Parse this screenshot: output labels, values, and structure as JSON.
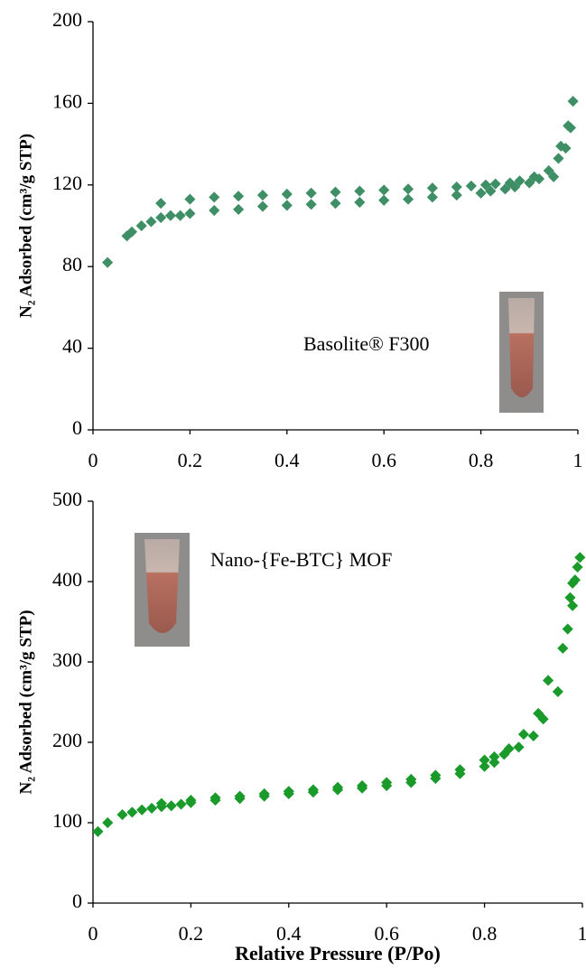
{
  "chart_data": [
    {
      "type": "scatter",
      "ylabel": "N₂ Adsorbed (cm³/g STP)",
      "annotation": "Basolite® F300",
      "color": "#3f8f66",
      "x": [
        0.03,
        0.07,
        0.08,
        0.1,
        0.12,
        0.14,
        0.14,
        0.16,
        0.18,
        0.2,
        0.2,
        0.25,
        0.25,
        0.3,
        0.3,
        0.35,
        0.35,
        0.4,
        0.4,
        0.45,
        0.45,
        0.5,
        0.5,
        0.55,
        0.55,
        0.6,
        0.6,
        0.65,
        0.65,
        0.7,
        0.7,
        0.75,
        0.75,
        0.78,
        0.8,
        0.81,
        0.82,
        0.83,
        0.85,
        0.86,
        0.87,
        0.88,
        0.9,
        0.91,
        0.92,
        0.94,
        0.95,
        0.96,
        0.965,
        0.975,
        0.98,
        0.985,
        0.99
      ],
      "values": [
        82,
        95,
        97,
        100,
        102,
        111,
        104,
        105,
        105,
        106,
        113,
        114,
        107.5,
        114.5,
        108,
        115,
        109.5,
        115.5,
        110,
        116,
        110.5,
        116.5,
        111,
        117,
        111.5,
        117.5,
        112.5,
        118,
        113,
        118.5,
        114,
        119,
        115,
        119.5,
        116,
        120,
        117,
        120.5,
        118,
        121,
        119,
        122,
        121,
        124,
        123,
        127,
        124,
        133,
        139,
        138,
        149,
        148,
        161
      ],
      "xlim": [
        0,
        1
      ],
      "ylim": [
        0,
        200
      ],
      "xticks": [
        0,
        0.2,
        0.4,
        0.6,
        0.8,
        1
      ],
      "yticks": [
        0,
        40,
        80,
        120,
        160,
        200
      ]
    },
    {
      "type": "scatter",
      "ylabel": "N₂ Adsorbed (cm³/g STP)",
      "annotation": "Nano-{Fe-BTC} MOF",
      "xlabel": "Relative Pressure (P/Po)",
      "color": "#1a9a2a",
      "x": [
        0.01,
        0.03,
        0.06,
        0.08,
        0.1,
        0.12,
        0.14,
        0.14,
        0.16,
        0.18,
        0.2,
        0.2,
        0.25,
        0.25,
        0.3,
        0.3,
        0.35,
        0.35,
        0.4,
        0.4,
        0.45,
        0.45,
        0.5,
        0.5,
        0.55,
        0.55,
        0.6,
        0.6,
        0.65,
        0.65,
        0.7,
        0.7,
        0.75,
        0.75,
        0.8,
        0.8,
        0.82,
        0.82,
        0.84,
        0.85,
        0.87,
        0.88,
        0.9,
        0.91,
        0.92,
        0.93,
        0.95,
        0.96,
        0.97,
        0.975,
        0.98,
        0.98,
        0.985,
        0.99,
        0.995
      ],
      "values": [
        89,
        100,
        110,
        113,
        116,
        118,
        120,
        124,
        121,
        123,
        125,
        128,
        128,
        131,
        130,
        133,
        133,
        136,
        136,
        139,
        138,
        141,
        141,
        144,
        143,
        146,
        146,
        150,
        150,
        154,
        155,
        159,
        161,
        166,
        170,
        178,
        175,
        182,
        185,
        192,
        194,
        210,
        208,
        236,
        229,
        277,
        263,
        317,
        341,
        380,
        370,
        398,
        402,
        418,
        430
      ],
      "xlim": [
        0,
        1
      ],
      "ylim": [
        0,
        500
      ],
      "xticks": [
        0,
        0.2,
        0.4,
        0.6,
        0.8,
        1
      ],
      "yticks": [
        0,
        100,
        200,
        300,
        400,
        500
      ]
    }
  ]
}
